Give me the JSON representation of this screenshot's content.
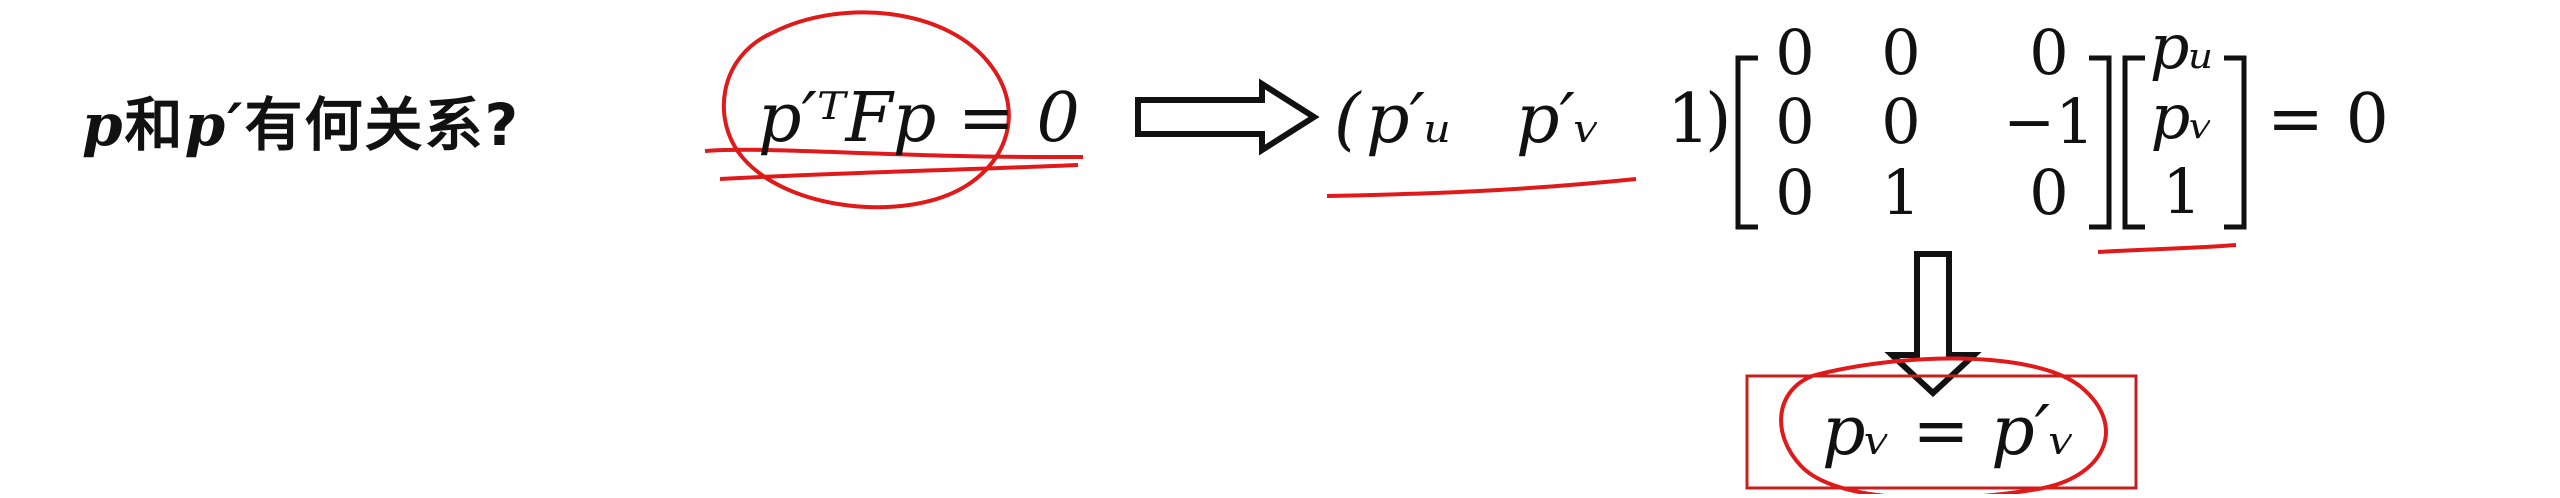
{
  "question": {
    "prefix": "p",
    "middle": "和",
    "target": "p′",
    "suffix": "有何关系?"
  },
  "constraint": {
    "lhs": "p′ᵀFp = 0"
  },
  "row_vector": {
    "open": "(",
    "pu": "p′ᵤ",
    "pv": "p′ᵥ",
    "one": "1",
    "close": ")"
  },
  "matrix": {
    "rows": [
      [
        "0",
        "0",
        "0"
      ],
      [
        "0",
        "0",
        "−1"
      ],
      [
        "0",
        "1",
        "0"
      ]
    ]
  },
  "column_vector": {
    "items": [
      "pᵤ",
      "pᵥ",
      "1"
    ]
  },
  "result": {
    "rhs": "= 0",
    "conclusion": "pᵥ = p′ᵥ"
  },
  "colors": {
    "ink": "#111111",
    "annotation": "#e01a1a"
  }
}
